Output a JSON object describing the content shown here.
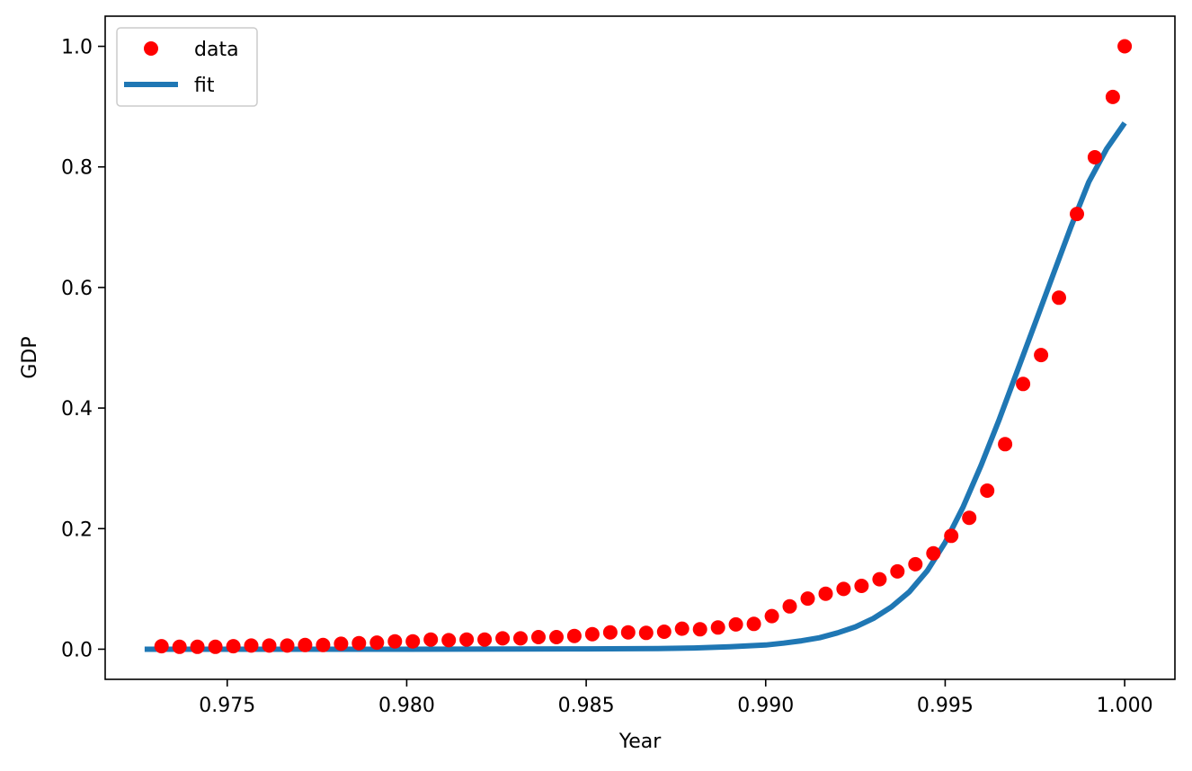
{
  "chart_data": {
    "type": "scatter",
    "xlabel": "Year",
    "ylabel": "GDP",
    "xlim": [
      0.9716,
      1.0014
    ],
    "ylim": [
      -0.05,
      1.05
    ],
    "xticks": [
      0.975,
      0.98,
      0.985,
      0.99,
      0.995,
      1.0
    ],
    "xtick_labels": [
      "0.975",
      "0.980",
      "0.985",
      "0.990",
      "0.995",
      "1.000"
    ],
    "yticks": [
      0.0,
      0.2,
      0.4,
      0.6,
      0.8,
      1.0
    ],
    "ytick_labels": [
      "0.0",
      "0.2",
      "0.4",
      "0.6",
      "0.8",
      "1.0"
    ],
    "grid": false,
    "legend": {
      "position": "top-left"
    },
    "series": [
      {
        "name": "data",
        "kind": "points",
        "color": "#ff0000",
        "x": [
          0.97317,
          0.97367,
          0.97417,
          0.97467,
          0.97517,
          0.97567,
          0.97617,
          0.97667,
          0.97717,
          0.97767,
          0.97817,
          0.97867,
          0.97917,
          0.97967,
          0.98017,
          0.98067,
          0.98117,
          0.98167,
          0.98217,
          0.98267,
          0.98317,
          0.98367,
          0.98417,
          0.98467,
          0.98517,
          0.98567,
          0.98617,
          0.98667,
          0.98717,
          0.98767,
          0.98817,
          0.98867,
          0.98917,
          0.98967,
          0.99017,
          0.99067,
          0.99117,
          0.99167,
          0.99217,
          0.99267,
          0.99317,
          0.99367,
          0.99417,
          0.99467,
          0.99517,
          0.99567,
          0.99617,
          0.99667,
          0.99717,
          0.99767,
          0.99817,
          0.99867,
          0.99917,
          0.99967,
          1.0
        ],
        "y": [
          0.005,
          0.004,
          0.004,
          0.004,
          0.005,
          0.006,
          0.006,
          0.006,
          0.007,
          0.007,
          0.009,
          0.01,
          0.011,
          0.013,
          0.013,
          0.016,
          0.015,
          0.016,
          0.016,
          0.018,
          0.018,
          0.02,
          0.02,
          0.022,
          0.025,
          0.028,
          0.028,
          0.027,
          0.029,
          0.034,
          0.033,
          0.036,
          0.041,
          0.042,
          0.055,
          0.071,
          0.084,
          0.092,
          0.1,
          0.105,
          0.116,
          0.129,
          0.141,
          0.159,
          0.188,
          0.218,
          0.263,
          0.34,
          0.44,
          0.488,
          0.583,
          0.722,
          0.816,
          0.916,
          1.0
        ]
      },
      {
        "name": "fit",
        "kind": "line",
        "color": "#1f77b4",
        "x": [
          0.9727,
          0.98,
          0.985,
          0.987,
          0.988,
          0.989,
          0.99,
          0.9905,
          0.991,
          0.9915,
          0.992,
          0.9925,
          0.993,
          0.9935,
          0.994,
          0.9945,
          0.995,
          0.9955,
          0.996,
          0.9965,
          0.997,
          0.9975,
          0.998,
          0.9985,
          0.999,
          0.9995,
          1.0
        ],
        "y": [
          0.0,
          0.0,
          0.0005,
          0.001,
          0.002,
          0.004,
          0.007,
          0.01,
          0.014,
          0.019,
          0.027,
          0.037,
          0.051,
          0.07,
          0.095,
          0.13,
          0.177,
          0.236,
          0.305,
          0.38,
          0.46,
          0.54,
          0.62,
          0.7,
          0.775,
          0.83,
          0.873
        ]
      }
    ]
  }
}
